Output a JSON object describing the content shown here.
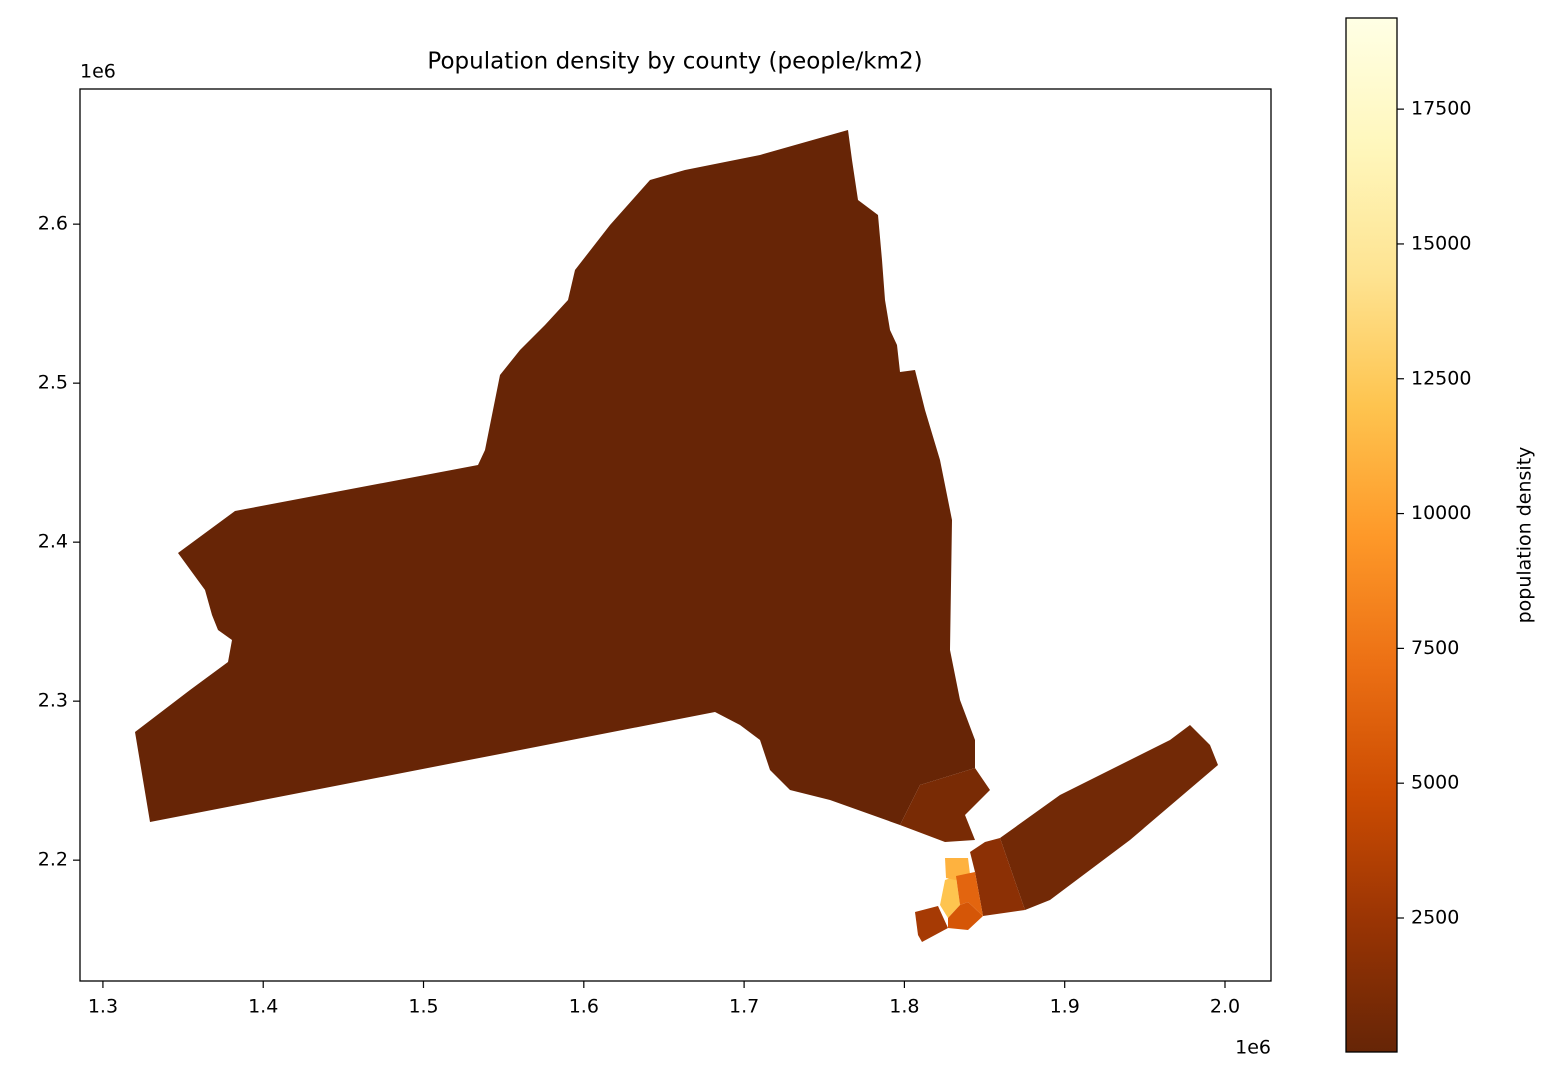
{
  "chart_data": {
    "type": "choropleth",
    "title": "Population density by county (people/km2)",
    "x_offset_label": "1e6",
    "y_offset_label": "1e6",
    "xlim": [
      1285700,
      2028700
    ],
    "ylim": [
      2124000,
      2685000
    ],
    "xticks": [
      {
        "value": 1300000,
        "label": "1.3"
      },
      {
        "value": 1400000,
        "label": "1.4"
      },
      {
        "value": 1500000,
        "label": "1.5"
      },
      {
        "value": 1600000,
        "label": "1.6"
      },
      {
        "value": 1700000,
        "label": "1.7"
      },
      {
        "value": 1800000,
        "label": "1.8"
      },
      {
        "value": 1900000,
        "label": "1.9"
      },
      {
        "value": 2000000,
        "label": "2.0"
      }
    ],
    "yticks": [
      {
        "value": 2200000,
        "label": "2.2"
      },
      {
        "value": 2300000,
        "label": "2.3"
      },
      {
        "value": 2400000,
        "label": "2.4"
      },
      {
        "value": 2500000,
        "label": "2.5"
      },
      {
        "value": 2600000,
        "label": "2.6"
      }
    ],
    "values": [
      50,
      900,
      600,
      1800,
      12000,
      11000,
      5500,
      6500,
      3000
    ],
    "colorbar": {
      "label": "population density",
      "colormap": "YlOrBr_r",
      "lim": [
        15,
        19190
      ],
      "ticks": [
        2500,
        5000,
        7500,
        10000,
        12500,
        15000,
        17500
      ]
    }
  }
}
